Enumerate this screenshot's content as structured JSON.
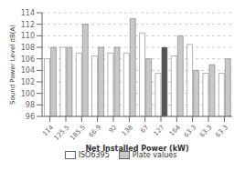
{
  "chart_data": {
    "type": "bar",
    "categories": [
      "114",
      "125.5",
      "185.5",
      "66.9",
      "92",
      "138",
      "67",
      "127",
      "164",
      "63.3",
      "63.3",
      "63.3"
    ],
    "series": [
      {
        "name": "ISO6395",
        "color": "#ffffff",
        "values": [
          106,
          108,
          107,
          106.5,
          107,
          107,
          110.5,
          103.5,
          106.5,
          108.5,
          103.5,
          103.5
        ]
      },
      {
        "name": "Plate values",
        "color": "#c8c8c8",
        "colors": [
          "#c8c8c8",
          "#c8c8c8",
          "#c8c8c8",
          "#c8c8c8",
          "#c8c8c8",
          "#c8c8c8",
          "#c8c8c8",
          "#555555",
          "#c8c8c8",
          "#c8c8c8",
          "#c8c8c8",
          "#c8c8c8"
        ],
        "values": [
          108,
          108,
          112,
          108,
          108,
          113,
          106,
          108,
          110,
          104,
          105,
          106
        ]
      }
    ],
    "xlabel": "Net Installed Power (kW)",
    "ylabel": "Sound Power Level dB(A)",
    "ylim": [
      96,
      114
    ],
    "yticks": [
      96,
      98,
      100,
      102,
      104,
      106,
      108,
      110,
      112,
      114
    ],
    "grid": true,
    "legend": "bottom"
  }
}
